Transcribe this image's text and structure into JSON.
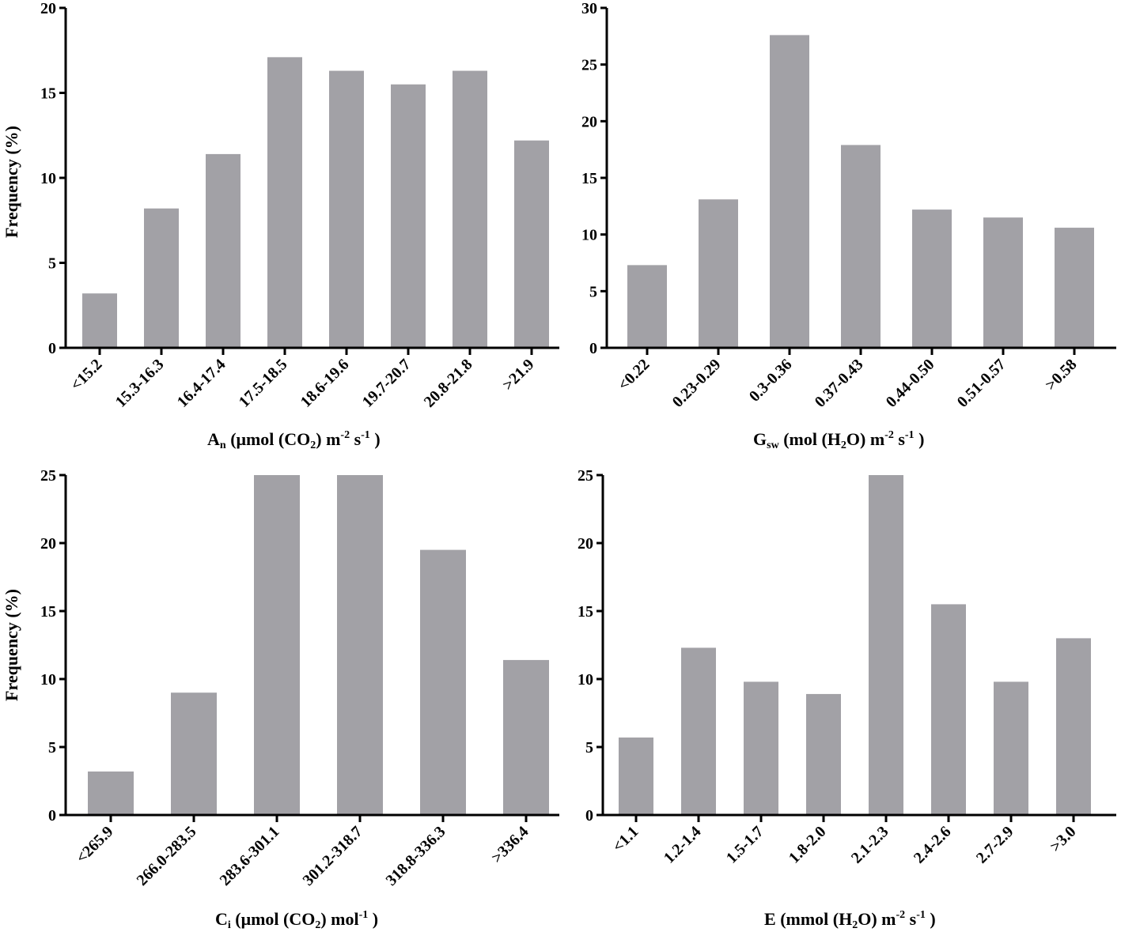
{
  "colors": {
    "bar": "#a2a1a6",
    "axis": "#000000"
  },
  "chart_data": [
    {
      "type": "bar",
      "panel": "An",
      "title": "",
      "ylabel": "Frequency (%)",
      "xlabel": {
        "main": "A",
        "sub": "n",
        "rest": " (μmol (CO",
        "sub2": "2",
        "rest2": ") m",
        "sup1": "-2",
        "rest3": " s",
        "sup2": "-1",
        "rest4": "  )"
      },
      "ylim": [
        0,
        20
      ],
      "yticks": [
        0,
        5,
        10,
        15,
        20
      ],
      "categories": [
        "<15.2",
        "15.3-16.3",
        "16.4-17.4",
        "17.5-18.5",
        "18.6-19.6",
        "19.7-20.7",
        "20.8-21.8",
        ">21.9"
      ],
      "values": [
        3.2,
        8.2,
        11.4,
        17.1,
        16.3,
        15.5,
        16.3,
        12.2
      ]
    },
    {
      "type": "bar",
      "panel": "Gsw",
      "title": "",
      "ylabel": "",
      "xlabel": {
        "main": "G",
        "sub": "sw",
        "rest": " (mol (H",
        "sub2": "2",
        "rest2": "O) m",
        "sup1": "-2",
        "rest3": " s",
        "sup2": "-1",
        "rest4": "  )"
      },
      "ylim": [
        0,
        30
      ],
      "yticks": [
        0,
        5,
        10,
        15,
        20,
        25,
        30
      ],
      "categories": [
        "<0.22",
        "0.23-0.29",
        "0.3-0.36",
        "0.37-0.43",
        "0.44-0.50",
        "0.51-0.57",
        ">0.58"
      ],
      "values": [
        7.3,
        13.1,
        27.6,
        17.9,
        12.2,
        11.5,
        10.6
      ]
    },
    {
      "type": "bar",
      "panel": "Ci",
      "title": "",
      "ylabel": "Frequency (%)",
      "xlabel": {
        "main": "C",
        "sub": "i",
        "rest": " (μmol (CO",
        "sub2": "2",
        "rest2": ") mol",
        "sup1": "-1",
        "rest3": "",
        "sup2": "",
        "rest4": "  )"
      },
      "ylim": [
        0,
        25
      ],
      "yticks": [
        0,
        5,
        10,
        15,
        20,
        25
      ],
      "categories": [
        "<265.9",
        "266.0-283.5",
        "283.6-301.1",
        "301.2-318.7",
        "318.8-336.3",
        ">336.4"
      ],
      "values": [
        3.2,
        9.0,
        25.0,
        25.0,
        19.5,
        11.4
      ]
    },
    {
      "type": "bar",
      "panel": "E",
      "title": "",
      "ylabel": "",
      "xlabel": {
        "main": "E",
        "sub": "",
        "rest": " (mmol (H",
        "sub2": "2",
        "rest2": "O) m",
        "sup1": "-2",
        "rest3": " s",
        "sup2": "-1",
        "rest4": "  )"
      },
      "ylim": [
        0,
        25
      ],
      "yticks": [
        0,
        5,
        10,
        15,
        20,
        25
      ],
      "categories": [
        "<1.1",
        "1.2-1.4",
        "1.5-1.7",
        "1.8-2.0",
        "2.1-2.3",
        "2.4-2.6",
        "2.7-2.9",
        ">3.0"
      ],
      "values": [
        5.7,
        12.3,
        9.8,
        8.9,
        25.0,
        15.5,
        9.8,
        13.0
      ]
    }
  ]
}
